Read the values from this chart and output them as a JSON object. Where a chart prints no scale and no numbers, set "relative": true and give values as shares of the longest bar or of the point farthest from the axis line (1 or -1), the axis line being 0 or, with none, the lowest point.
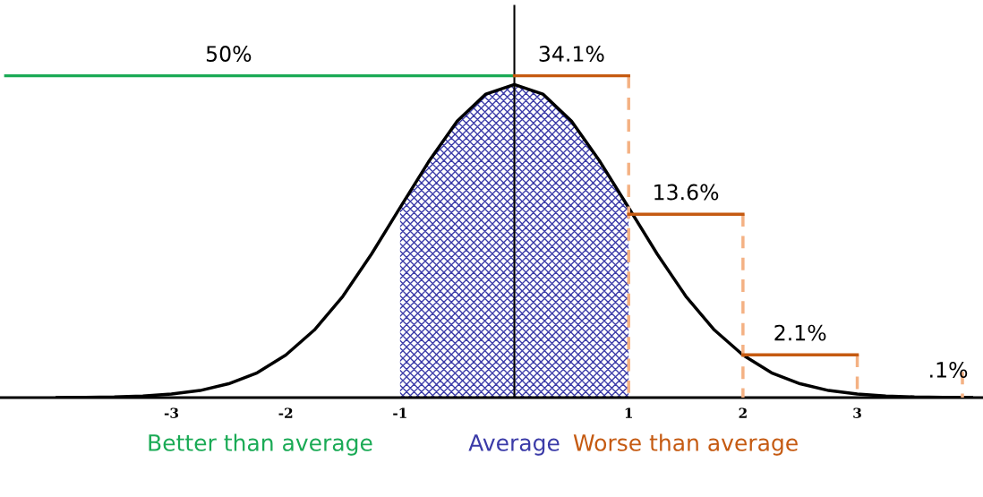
{
  "chart_data": {
    "type": "line",
    "relative": true,
    "xlim": [
      -4.5,
      4.1
    ],
    "xticks": [
      -3,
      -2,
      -1,
      1,
      2,
      3
    ],
    "grid": false,
    "legend": false,
    "marker": "none",
    "series": [
      {
        "type": "area",
        "name": "Average",
        "color": "#3b3ba8",
        "x": [
          -1,
          -0.75,
          -0.5,
          -0.25,
          0,
          0.25,
          0.5,
          0.75,
          1
        ],
        "values": [
          0.59,
          0.733,
          0.859,
          0.943,
          0.973,
          0.943,
          0.859,
          0.733,
          0.59
        ]
      },
      {
        "color": "#000000",
        "x": [
          -4,
          -3.75,
          -3.5,
          -3.25,
          -3,
          -2.75,
          -2.5,
          -2.25,
          -2,
          -1.75,
          -1.5,
          -1.25,
          -1,
          -0.75,
          -0.5,
          -0.25,
          0,
          0.25,
          0.5,
          0.75,
          1,
          1.25,
          1.5,
          1.75,
          2,
          2.25,
          2.5,
          2.75,
          3,
          3.25,
          3.5,
          3.75,
          4
        ],
        "values": [
          0,
          0.001,
          0.002,
          0.005,
          0.011,
          0.022,
          0.043,
          0.077,
          0.132,
          0.21,
          0.315,
          0.446,
          0.59,
          0.733,
          0.859,
          0.943,
          0.973,
          0.943,
          0.859,
          0.733,
          0.59,
          0.446,
          0.315,
          0.21,
          0.132,
          0.077,
          0.043,
          0.022,
          0.011,
          0.005,
          0.002,
          0.001,
          0
        ]
      },
      {
        "type": "line",
        "name": "Better than average",
        "color": "#1aaa55",
        "x": [
          0,
          -4.45
        ],
        "values": [
          1,
          1
        ]
      },
      {
        "type": "line",
        "color": "#f4b183",
        "line_style": "dashed",
        "x": [
          1,
          1,
          null,
          2,
          2,
          null,
          3,
          3,
          null,
          3.92,
          3.92
        ],
        "values": [
          1,
          0,
          null,
          0.57,
          0,
          null,
          0.133,
          0,
          null,
          0.08,
          0
        ]
      },
      {
        "type": "line",
        "name": "Worse than average",
        "color": "#c55a11",
        "x": [
          0,
          1,
          null,
          1,
          2,
          null,
          2,
          3
        ],
        "values": [
          1,
          1,
          null,
          0.57,
          0.57,
          null,
          0.133,
          0.133
        ]
      }
    ],
    "ref_lines": [
      {
        "axis": "x",
        "value": 0,
        "color": "#000000"
      }
    ],
    "annotations": [
      {
        "text": "50%",
        "x": -2.5,
        "y": 1
      },
      {
        "text": "34.1%",
        "x": 0.5,
        "y": 1
      },
      {
        "text": "13.6%",
        "x": 1.5,
        "y": 0.57
      },
      {
        "text": "2.1%",
        "x": 2.5,
        "y": 0.133
      },
      ".1%"
    ]
  }
}
